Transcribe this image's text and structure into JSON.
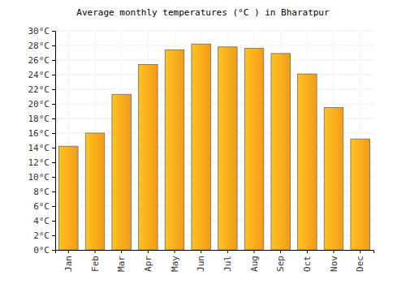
{
  "chart_data": {
    "type": "bar",
    "title": "Average monthly temperatures (°C ) in Bharatpur",
    "categories": [
      "Jan",
      "Feb",
      "Mar",
      "Apr",
      "May",
      "Jun",
      "Jul",
      "Aug",
      "Sep",
      "Oct",
      "Nov",
      "Dec"
    ],
    "values": [
      14.2,
      16.0,
      21.3,
      25.4,
      27.4,
      28.2,
      27.8,
      27.6,
      26.9,
      24.1,
      19.5,
      15.2
    ],
    "color": "#ffa31a",
    "ylim": [
      0,
      30
    ],
    "yticks": [
      {
        "value": 0,
        "label": "0°C"
      },
      {
        "value": 2,
        "label": "2°C"
      },
      {
        "value": 4,
        "label": "4°C"
      },
      {
        "value": 6,
        "label": "6°C"
      },
      {
        "value": 8,
        "label": "8°C"
      },
      {
        "value": 10,
        "label": "10°C"
      },
      {
        "value": 12,
        "label": "12°C"
      },
      {
        "value": 14,
        "label": "14°C"
      },
      {
        "value": 16,
        "label": "16°C"
      },
      {
        "value": 18,
        "label": "18°C"
      },
      {
        "value": 20,
        "label": "20°C"
      },
      {
        "value": 22,
        "label": "22°C"
      },
      {
        "value": 24,
        "label": "24°C"
      },
      {
        "value": 26,
        "label": "26°C"
      },
      {
        "value": 28,
        "label": "28°C"
      },
      {
        "value": 30,
        "label": "30°C"
      }
    ],
    "grid": true
  }
}
